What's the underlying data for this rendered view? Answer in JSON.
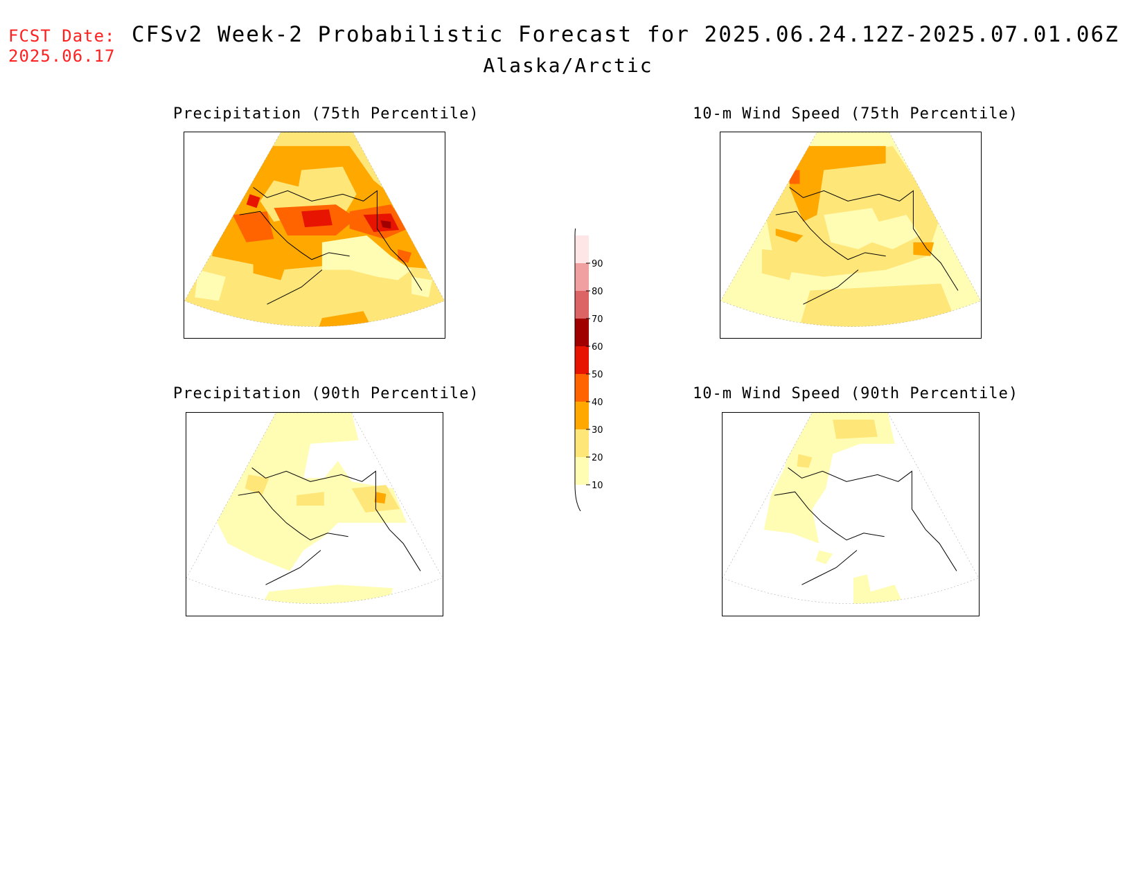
{
  "header": {
    "fcst_label": "FCST Date:",
    "fcst_date": "2025.06.17",
    "title": "CFSv2 Week-2 Probabilistic Forecast for 2025.06.24.12Z-2025.07.01.06Z",
    "region": "Alaska/Arctic"
  },
  "panels": [
    {
      "id": "precip75",
      "title": "Precipitation (75th Percentile)"
    },
    {
      "id": "wind75",
      "title": "10-m Wind Speed (75th Percentile)"
    },
    {
      "id": "precip90",
      "title": "Precipitation (90th Percentile)"
    },
    {
      "id": "wind90",
      "title": "10-m Wind Speed (90th Percentile)"
    }
  ],
  "colorbar": {
    "levels": [
      "10",
      "20",
      "30",
      "40",
      "50",
      "60",
      "70",
      "80",
      "90"
    ],
    "colors": [
      "#fffcb4",
      "#ffe678",
      "#ffa800",
      "#ff6400",
      "#e61400",
      "#a00000",
      "#dc6464",
      "#f0a0a0",
      "#ffe6e6"
    ]
  }
}
